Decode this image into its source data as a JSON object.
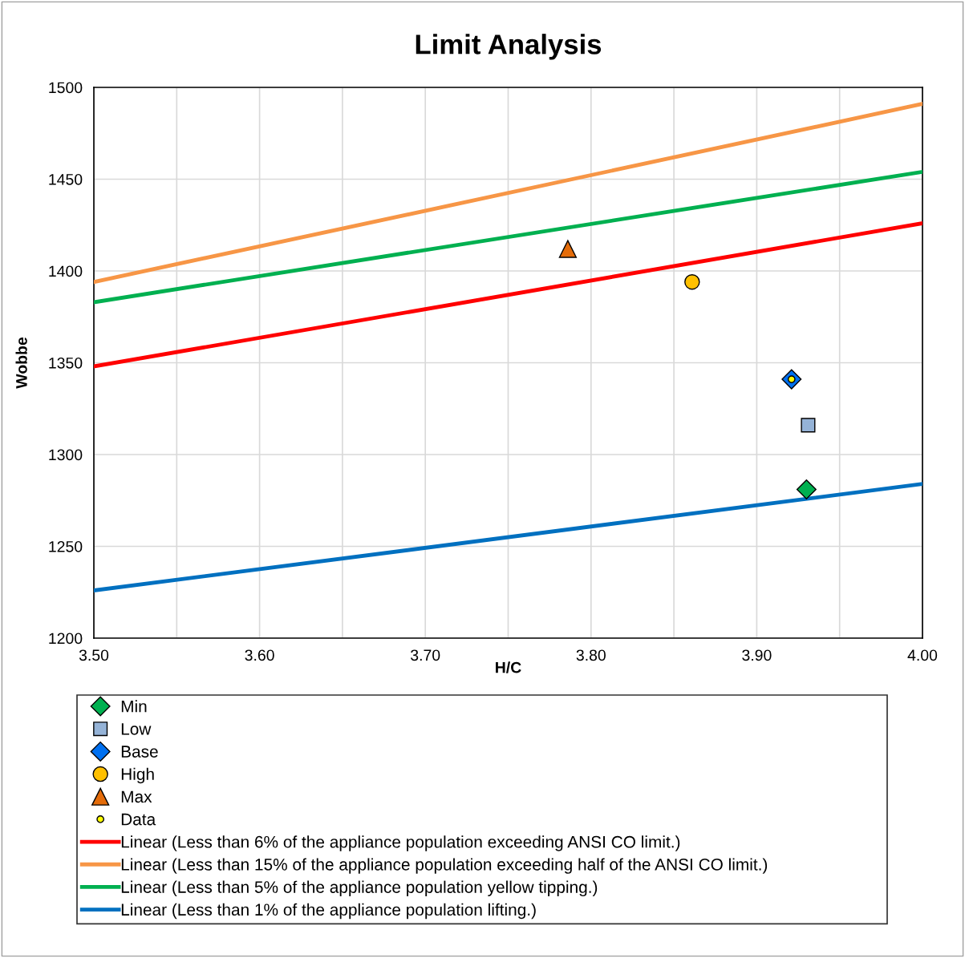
{
  "chart_data": {
    "type": "scatter",
    "title": "Limit Analysis",
    "xlabel": "H/C",
    "ylabel": "Wobbe",
    "xlim": [
      3.5,
      4.0
    ],
    "xticks": [
      {
        "value": 3.5,
        "label": "3.50"
      },
      {
        "value": 3.55,
        "label": null
      },
      {
        "value": 3.6,
        "label": "3.60"
      },
      {
        "value": 3.65,
        "label": null
      },
      {
        "value": 3.7,
        "label": "3.70"
      },
      {
        "value": 3.75,
        "label": null
      },
      {
        "value": 3.8,
        "label": "3.80"
      },
      {
        "value": 3.85,
        "label": null
      },
      {
        "value": 3.9,
        "label": "3.90"
      },
      {
        "value": 3.95,
        "label": null
      },
      {
        "value": 4.0,
        "label": "4.00"
      }
    ],
    "ylim": [
      1200,
      1500
    ],
    "yticks": [
      1200,
      1250,
      1300,
      1350,
      1400,
      1450,
      1500
    ],
    "grid": true,
    "legend": "bottom",
    "series": [
      {
        "name": "Min",
        "marker": "diamond",
        "color": "#00b050",
        "x": [
          3.93
        ],
        "values": [
          1281
        ]
      },
      {
        "name": "Low",
        "marker": "square",
        "color": "#95b3d7",
        "x": [
          3.931
        ],
        "values": [
          1316
        ]
      },
      {
        "name": "Base",
        "marker": "diamond",
        "color": "#0070f0",
        "x": [
          3.921
        ],
        "values": [
          1341
        ]
      },
      {
        "name": "High",
        "marker": "circle",
        "color": "#ffc000",
        "x": [
          3.861
        ],
        "values": [
          1394
        ]
      },
      {
        "name": "Max",
        "marker": "triangle",
        "color": "#e46c0a",
        "x": [
          3.786
        ],
        "values": [
          1412
        ]
      },
      {
        "name": "Data",
        "marker": "circle",
        "color": "#ffff00",
        "x": [
          3.921
        ],
        "values": [
          1341
        ]
      },
      {
        "name": "Linear (Less than 6% of the appliance population exceeding ANSI CO limit.)",
        "type": "line",
        "color": "#ff0000",
        "x": [
          3.5,
          4.0
        ],
        "values": [
          1348,
          1426
        ]
      },
      {
        "name": "Linear (Less than 15% of the appliance population exceeding half of the ANSI CO limit.)",
        "type": "line",
        "color": "#f79646",
        "x": [
          3.5,
          4.0
        ],
        "values": [
          1394,
          1491
        ]
      },
      {
        "name": "Linear (Less than 5% of the appliance population yellow tipping.)",
        "type": "line",
        "color": "#00b050",
        "x": [
          3.5,
          4.0
        ],
        "values": [
          1383,
          1454
        ]
      },
      {
        "name": "Linear (Less than 1% of the appliance population lifting.)",
        "type": "line",
        "color": "#0070c0",
        "x": [
          3.5,
          4.0
        ],
        "values": [
          1226,
          1284
        ]
      }
    ]
  }
}
